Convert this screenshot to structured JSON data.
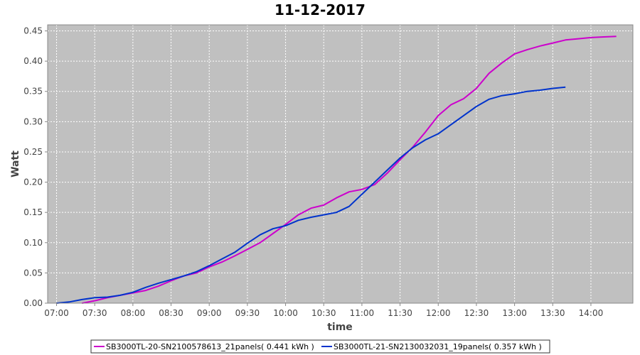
{
  "chart_data": {
    "type": "line",
    "title": "11-12-2017",
    "xlabel": "time",
    "ylabel": "Watt",
    "xlim": [
      "06:53",
      "14:33"
    ],
    "ylim": [
      0,
      0.46
    ],
    "x_ticks": [
      "07:00",
      "07:30",
      "08:00",
      "08:30",
      "09:00",
      "09:30",
      "10:00",
      "10:30",
      "11:00",
      "11:30",
      "12:00",
      "12:30",
      "13:00",
      "13:30",
      "14:00"
    ],
    "y_ticks": [
      "0.00",
      "0.05",
      "0.10",
      "0.15",
      "0.20",
      "0.25",
      "0.30",
      "0.35",
      "0.40",
      "0.45"
    ],
    "grid": true,
    "legend_position": "bottom",
    "colors": {
      "plot_background": "#c0c0c0",
      "grid": "#ffffff"
    },
    "series": [
      {
        "name": "SB3000TL-20-SN2100578613_21panels( 0.441 kWh )",
        "color": "#cc00cc",
        "points": [
          [
            "07:20",
            0.0
          ],
          [
            "07:30",
            0.004
          ],
          [
            "07:40",
            0.009
          ],
          [
            "07:50",
            0.013
          ],
          [
            "08:00",
            0.017
          ],
          [
            "08:10",
            0.021
          ],
          [
            "08:20",
            0.028
          ],
          [
            "08:30",
            0.037
          ],
          [
            "08:40",
            0.045
          ],
          [
            "08:50",
            0.05
          ],
          [
            "09:00",
            0.06
          ],
          [
            "09:10",
            0.068
          ],
          [
            "09:20",
            0.078
          ],
          [
            "09:30",
            0.089
          ],
          [
            "09:40",
            0.1
          ],
          [
            "09:50",
            0.115
          ],
          [
            "10:00",
            0.13
          ],
          [
            "10:10",
            0.146
          ],
          [
            "10:20",
            0.157
          ],
          [
            "10:30",
            0.162
          ],
          [
            "10:40",
            0.174
          ],
          [
            "10:50",
            0.184
          ],
          [
            "11:00",
            0.188
          ],
          [
            "11:10",
            0.196
          ],
          [
            "11:20",
            0.215
          ],
          [
            "11:30",
            0.237
          ],
          [
            "11:40",
            0.258
          ],
          [
            "11:50",
            0.283
          ],
          [
            "12:00",
            0.31
          ],
          [
            "12:10",
            0.328
          ],
          [
            "12:20",
            0.338
          ],
          [
            "12:30",
            0.355
          ],
          [
            "12:40",
            0.38
          ],
          [
            "12:50",
            0.397
          ],
          [
            "13:00",
            0.412
          ],
          [
            "13:10",
            0.419
          ],
          [
            "13:20",
            0.425
          ],
          [
            "13:30",
            0.43
          ],
          [
            "13:40",
            0.435
          ],
          [
            "13:50",
            0.437
          ],
          [
            "14:00",
            0.439
          ],
          [
            "14:10",
            0.44
          ],
          [
            "14:20",
            0.441
          ]
        ]
      },
      {
        "name": "SB3000TL-21-SN2130032031_19panels( 0.357 kWh )",
        "color": "#0033cc",
        "points": [
          [
            "07:00",
            0.0
          ],
          [
            "07:10",
            0.002
          ],
          [
            "07:20",
            0.006
          ],
          [
            "07:30",
            0.009
          ],
          [
            "07:40",
            0.01
          ],
          [
            "07:50",
            0.013
          ],
          [
            "08:00",
            0.018
          ],
          [
            "08:10",
            0.026
          ],
          [
            "08:20",
            0.033
          ],
          [
            "08:30",
            0.039
          ],
          [
            "08:40",
            0.045
          ],
          [
            "08:50",
            0.052
          ],
          [
            "09:00",
            0.062
          ],
          [
            "09:10",
            0.073
          ],
          [
            "09:20",
            0.084
          ],
          [
            "09:30",
            0.099
          ],
          [
            "09:40",
            0.113
          ],
          [
            "09:50",
            0.123
          ],
          [
            "10:00",
            0.128
          ],
          [
            "10:10",
            0.137
          ],
          [
            "10:20",
            0.142
          ],
          [
            "10:30",
            0.146
          ],
          [
            "10:40",
            0.15
          ],
          [
            "10:50",
            0.16
          ],
          [
            "11:00",
            0.18
          ],
          [
            "11:10",
            0.2
          ],
          [
            "11:20",
            0.22
          ],
          [
            "11:30",
            0.24
          ],
          [
            "11:40",
            0.257
          ],
          [
            "11:50",
            0.27
          ],
          [
            "12:00",
            0.28
          ],
          [
            "12:10",
            0.295
          ],
          [
            "12:20",
            0.31
          ],
          [
            "12:30",
            0.325
          ],
          [
            "12:40",
            0.337
          ],
          [
            "12:50",
            0.343
          ],
          [
            "13:00",
            0.346
          ],
          [
            "13:10",
            0.35
          ],
          [
            "13:20",
            0.352
          ],
          [
            "13:30",
            0.355
          ],
          [
            "13:40",
            0.357
          ]
        ]
      }
    ]
  }
}
